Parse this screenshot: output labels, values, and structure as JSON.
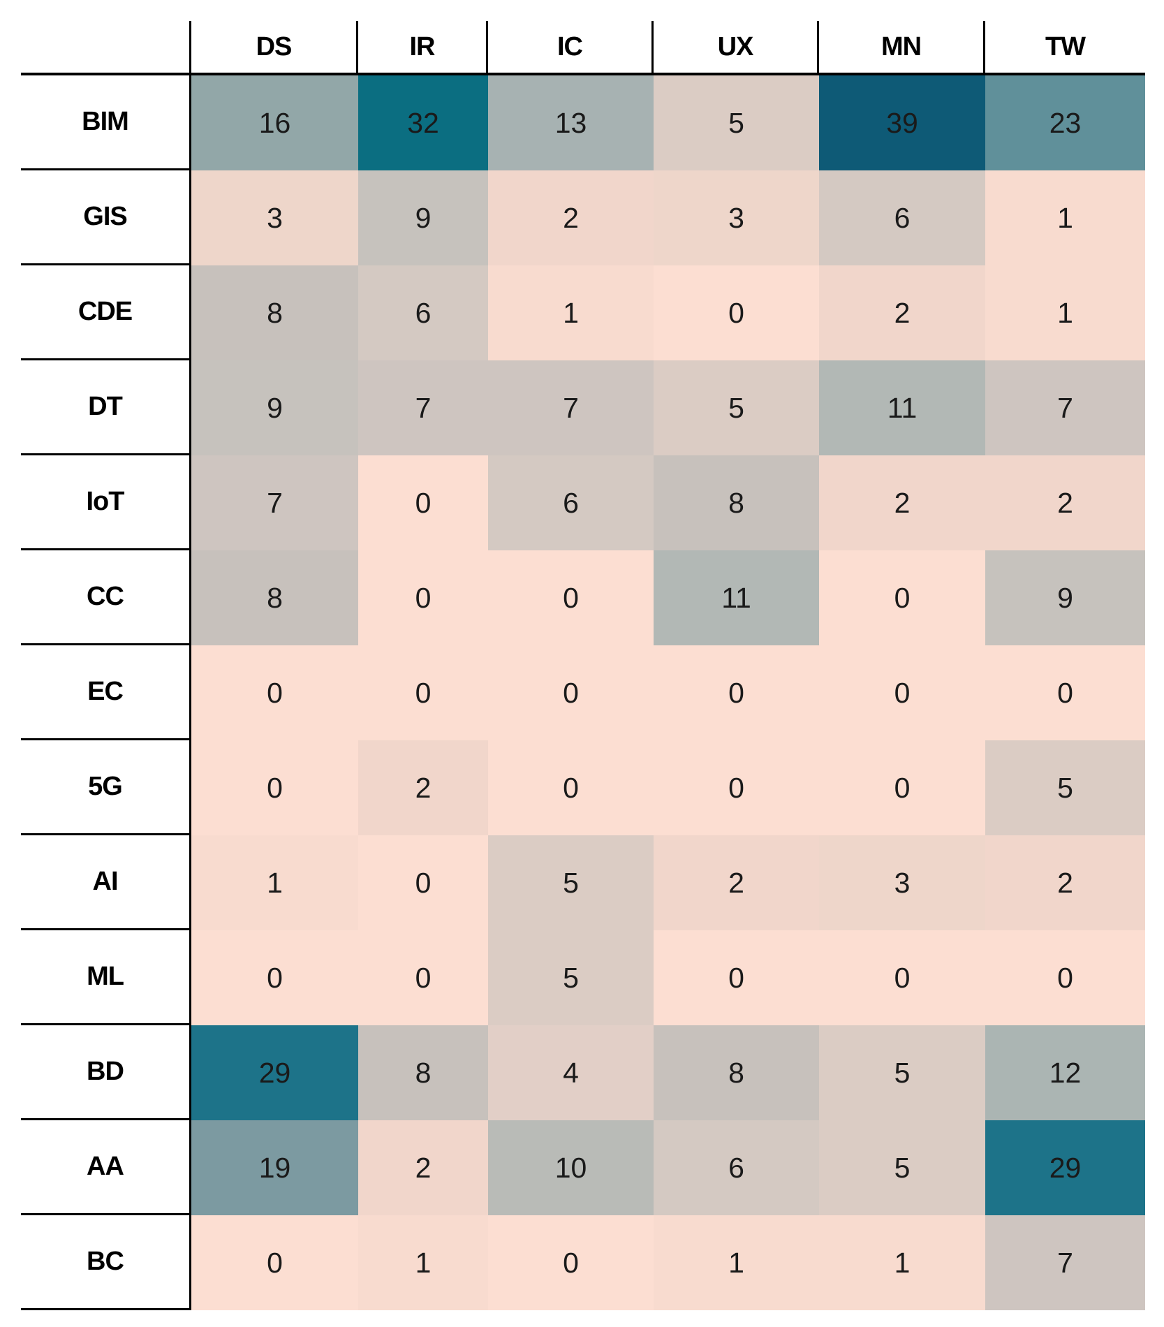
{
  "chart_data": {
    "type": "heatmap",
    "title": "",
    "columns": [
      "DS",
      "IR",
      "IC",
      "UX",
      "MN",
      "TW"
    ],
    "rows": [
      "BIM",
      "GIS",
      "CDE",
      "DT",
      "IoT",
      "CC",
      "EC",
      "5G",
      "AI",
      "ML",
      "BD",
      "AA",
      "BC"
    ],
    "values": [
      [
        16,
        32,
        13,
        5,
        39,
        23
      ],
      [
        3,
        9,
        2,
        3,
        6,
        1
      ],
      [
        8,
        6,
        1,
        0,
        2,
        1
      ],
      [
        9,
        7,
        7,
        5,
        11,
        7
      ],
      [
        7,
        0,
        6,
        8,
        2,
        2
      ],
      [
        8,
        0,
        0,
        11,
        0,
        9
      ],
      [
        0,
        0,
        0,
        0,
        0,
        0
      ],
      [
        0,
        2,
        0,
        0,
        0,
        5
      ],
      [
        1,
        0,
        5,
        2,
        3,
        2
      ],
      [
        0,
        0,
        5,
        0,
        0,
        0
      ],
      [
        29,
        8,
        4,
        8,
        5,
        12
      ],
      [
        19,
        2,
        10,
        6,
        5,
        29
      ],
      [
        0,
        1,
        0,
        1,
        1,
        7
      ]
    ],
    "value_range": [
      0,
      39
    ],
    "legend_position": "none",
    "grid_on": false,
    "colormap": {
      "0": "#fcded2",
      "1": "#f8dbcf",
      "2": "#f1d6cb",
      "3": "#eed6ca",
      "4": "#e2cfc7",
      "5": "#dbccc4",
      "6": "#d4c9c2",
      "7": "#cec5c0",
      "8": "#c7c1bc",
      "9": "#c6c2bd",
      "10": "#b9bbb7",
      "11": "#b2b8b5",
      "12": "#abb5b3",
      "13": "#a7b2b2",
      "16": "#92a7a8",
      "19": "#7c9aa1",
      "23": "#60909a",
      "29": "#1d7389",
      "32": "#0b6e81",
      "39": "#0e5a76"
    },
    "colors": {
      "background": "#ffffff",
      "rule_lines": "#000000",
      "value_text": "#1a1a1a",
      "label_text": "#000000"
    }
  }
}
